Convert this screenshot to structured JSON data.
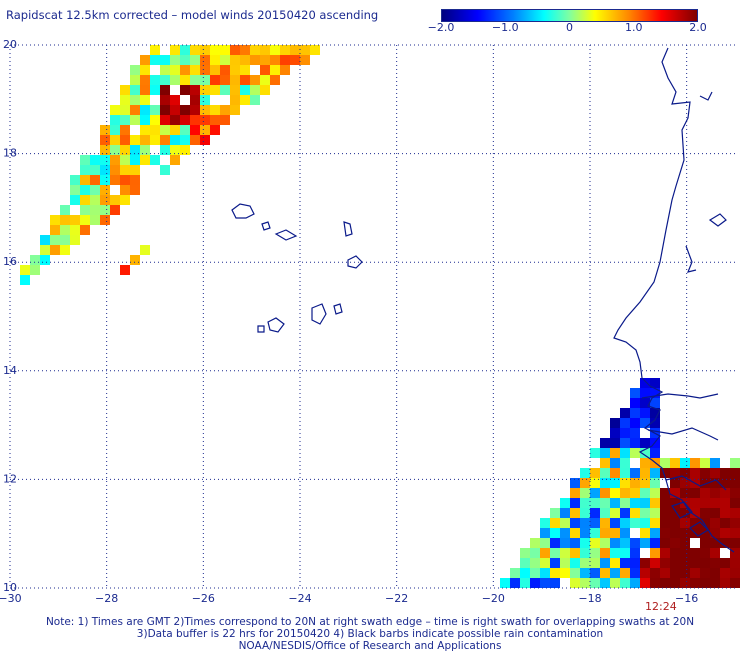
{
  "title": "Rapidscat 12.5km corrected – model winds 20150420 ascending",
  "colorbar": {
    "min": -2.0,
    "max": 2.0,
    "ticks": [
      "−2.0",
      "−1.0",
      "0",
      "1.0",
      "2.0"
    ],
    "tick_values": [
      -2.0,
      -1.0,
      0,
      1.0,
      2.0
    ],
    "colors": [
      "#00007f",
      "#0000ff",
      "#0080ff",
      "#00ffff",
      "#80ffa0",
      "#ffff00",
      "#ff8000",
      "#ff0000",
      "#7f0000"
    ]
  },
  "map": {
    "lon_range": [
      -30,
      -15
    ],
    "lat_range": [
      10,
      20
    ],
    "x_ticks": [
      {
        "value": -30,
        "label": "−30"
      },
      {
        "value": -28,
        "label": "−28"
      },
      {
        "value": -26,
        "label": "−26"
      },
      {
        "value": -24,
        "label": "−24"
      },
      {
        "value": -22,
        "label": "−22"
      },
      {
        "value": -20,
        "label": "−20"
      },
      {
        "value": -18,
        "label": "−18"
      },
      {
        "value": -16,
        "label": "−16"
      }
    ],
    "y_ticks": [
      {
        "value": 10,
        "label": "10"
      },
      {
        "value": 12,
        "label": "12"
      },
      {
        "value": 14,
        "label": "14"
      },
      {
        "value": 16,
        "label": "16"
      },
      {
        "value": 18,
        "label": "18"
      },
      {
        "value": 20,
        "label": "20"
      }
    ],
    "grid": "dotted",
    "coastline_color": "#0a1a8a"
  },
  "time_label": "12:24",
  "notes": [
    "Note: 1) Times are GMT 2)Times correspond to 20N at right swath edge – time is right swath for overlapping swaths at 20N",
    "3)Data buffer is 22 hrs for 20150420 4) Black barbs indicate possible rain contamination",
    "NOAA/NESDIS/Office of Research and Applications"
  ]
}
